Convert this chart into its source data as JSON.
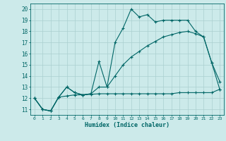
{
  "xlabel": "Humidex (Indice chaleur)",
  "bg_color": "#cceaea",
  "line_color": "#006666",
  "grid_color": "#aacfcf",
  "xlim": [
    -0.5,
    23.5
  ],
  "ylim": [
    10.5,
    20.5
  ],
  "xticks": [
    0,
    1,
    2,
    3,
    4,
    5,
    6,
    7,
    8,
    9,
    10,
    11,
    12,
    13,
    14,
    15,
    16,
    17,
    18,
    19,
    20,
    21,
    22,
    23
  ],
  "yticks": [
    11,
    12,
    13,
    14,
    15,
    16,
    17,
    18,
    19,
    20
  ],
  "series": [
    {
      "x": [
        0,
        1,
        2,
        3,
        4,
        5,
        6,
        7,
        8,
        9,
        10,
        11,
        12,
        13,
        14,
        15,
        16,
        17,
        18,
        19,
        20,
        21,
        22,
        23
      ],
      "y": [
        12.0,
        11.0,
        10.85,
        12.1,
        13.0,
        12.5,
        12.3,
        12.4,
        15.3,
        13.0,
        17.0,
        18.3,
        20.0,
        19.3,
        19.5,
        18.85,
        19.0,
        19.0,
        19.0,
        19.0,
        18.0,
        17.5,
        15.2,
        13.5
      ]
    },
    {
      "x": [
        0,
        1,
        2,
        3,
        4,
        5,
        6,
        7,
        8,
        9,
        10,
        11,
        12,
        13,
        14,
        15,
        16,
        17,
        18,
        19,
        20,
        21,
        22,
        23
      ],
      "y": [
        12.0,
        11.0,
        10.85,
        12.1,
        13.0,
        12.5,
        12.3,
        12.4,
        13.0,
        13.0,
        14.0,
        15.0,
        15.7,
        16.2,
        16.7,
        17.1,
        17.5,
        17.7,
        17.9,
        18.0,
        17.8,
        17.5,
        15.2,
        12.8
      ]
    },
    {
      "x": [
        0,
        1,
        2,
        3,
        4,
        5,
        6,
        7,
        8,
        9,
        10,
        11,
        12,
        13,
        14,
        15,
        16,
        17,
        18,
        19,
        20,
        21,
        22,
        23
      ],
      "y": [
        12.0,
        11.0,
        10.85,
        12.1,
        12.2,
        12.3,
        12.3,
        12.35,
        12.4,
        12.4,
        12.4,
        12.4,
        12.4,
        12.4,
        12.4,
        12.4,
        12.4,
        12.4,
        12.5,
        12.5,
        12.5,
        12.5,
        12.5,
        12.8
      ]
    }
  ]
}
